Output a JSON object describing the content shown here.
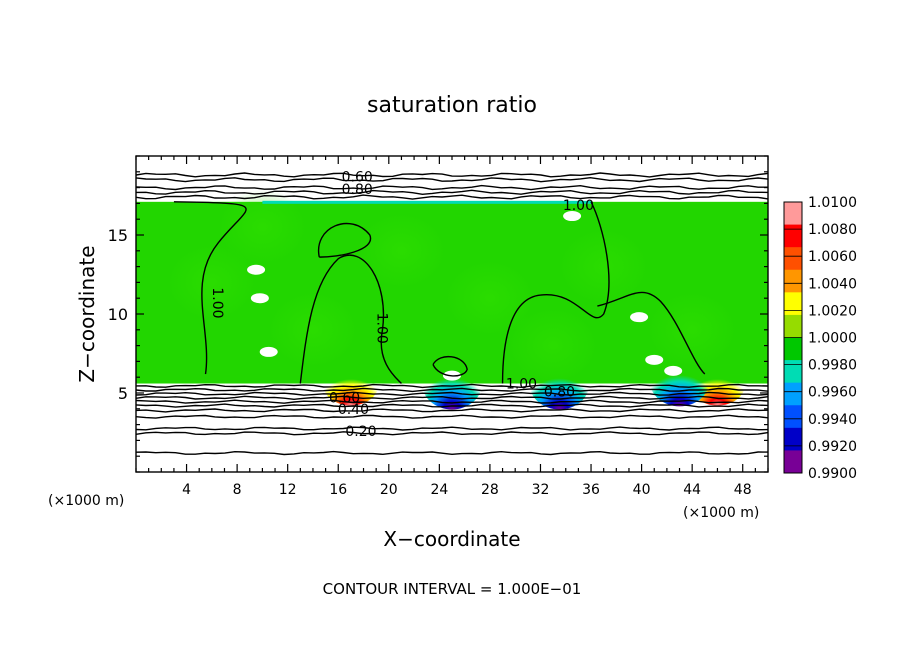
{
  "chart_data": {
    "type": "heatmap",
    "title": "saturation ratio",
    "xlabel": "X−coordinate",
    "ylabel": "Z−coordinate",
    "x_unit_left": "(×1000 m)",
    "x_unit_right": "(×1000 m)",
    "xlim": [
      0,
      50
    ],
    "ylim": [
      0,
      20
    ],
    "x_ticks": [
      4,
      8,
      12,
      16,
      20,
      24,
      28,
      32,
      36,
      40,
      44,
      48
    ],
    "y_ticks": [
      5,
      10,
      15
    ],
    "footer": "CONTOUR INTERVAL = 1.000E−01",
    "colorbar": {
      "min": 0.99,
      "max": 1.01,
      "labels": [
        "1.0100",
        "1.0080",
        "1.0060",
        "1.0040",
        "1.0020",
        "1.0000",
        "0.9980",
        "0.9960",
        "0.9940",
        "0.9920",
        "0.9900"
      ],
      "colors": [
        "#ff9a9a",
        "#ff0000",
        "#ff5000",
        "#ff9600",
        "#ffff00",
        "#96dc00",
        "#00c800",
        "#00dcb4",
        "#00a0ff",
        "#0050ff",
        "#0000c8",
        "#780096"
      ]
    },
    "field": {
      "background_value": 1.0,
      "cloud_top_z": 17.1,
      "cloud_base_z": 5.6,
      "supersat_spots": [
        {
          "x": 17,
          "z": 5.6,
          "value": 1.008
        },
        {
          "x": 46,
          "z": 5.6,
          "value": 1.008
        }
      ],
      "subsat_spots": [
        {
          "x": 25,
          "z": 5.6,
          "value": 0.992
        },
        {
          "x": 33.5,
          "z": 5.6,
          "value": 0.994
        },
        {
          "x": 43,
          "z": 5.8,
          "value": 0.993
        }
      ]
    },
    "contour_labels": [
      {
        "text": "0.60",
        "x": 17.5,
        "z": 18.7
      },
      {
        "text": "0.80",
        "x": 17.5,
        "z": 17.9
      },
      {
        "text": "1.00",
        "x": 35,
        "z": 16.9
      },
      {
        "text": "1.00",
        "x": 6.5,
        "z": 10.7
      },
      {
        "text": "1.00",
        "x": 19.5,
        "z": 9.1
      },
      {
        "text": "1.00",
        "x": 30.5,
        "z": 5.6
      },
      {
        "text": "0.80",
        "x": 33.5,
        "z": 5.1
      },
      {
        "text": "0.60",
        "x": 16.5,
        "z": 4.7
      },
      {
        "text": "0.40",
        "x": 17.2,
        "z": 4.0
      },
      {
        "text": "0.20",
        "x": 17.8,
        "z": 2.6
      }
    ]
  }
}
